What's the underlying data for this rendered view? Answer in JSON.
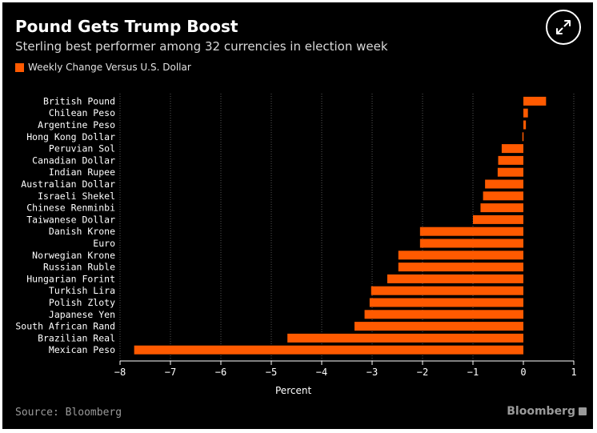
{
  "header": {
    "title": "Pound Gets Trump Boost",
    "subtitle": "Sterling best performer among 32 currencies in election week"
  },
  "footer": {
    "source": "Source: Bloomberg",
    "brand": "Bloomberg"
  },
  "colors": {
    "background": "#000000",
    "bar": "#ff5a00",
    "gridline": "#555555",
    "text": "#ffffff"
  },
  "icons": {
    "expand": "expand-arrows-icon"
  },
  "chart_data": {
    "type": "bar",
    "orientation": "horizontal",
    "title": "Pound Gets Trump Boost",
    "subtitle": "Sterling best performer among 32 currencies in election week",
    "legend": [
      "Weekly Change Versus U.S. Dollar"
    ],
    "legend_position": "top-left",
    "xlabel": "Percent",
    "ylabel": "",
    "xlim": [
      -8,
      1
    ],
    "xticks": [
      -8,
      -7,
      -6,
      -5,
      -4,
      -3,
      -2,
      -1,
      0,
      1
    ],
    "grid": true,
    "categories": [
      "British Pound",
      "Chilean Peso",
      "Argentine Peso",
      "Hong Kong Dollar",
      "Peruvian Sol",
      "Canadian Dollar",
      "Indian Rupee",
      "Australian Dollar",
      "Israeli Shekel",
      "Chinese Renminbi",
      "Taiwanese Dollar",
      "Danish Krone",
      "Euro",
      "Norwegian Krone",
      "Russian Ruble",
      "Hungarian Forint",
      "Turkish Lira",
      "Polish Zloty",
      "Japanese Yen",
      "South African Rand",
      "Brazilian Real",
      "Mexican Peso"
    ],
    "series": [
      {
        "name": "Weekly Change Versus U.S. Dollar",
        "values": [
          0.45,
          0.09,
          0.05,
          -0.02,
          -0.43,
          -0.5,
          -0.51,
          -0.76,
          -0.8,
          -0.85,
          -1.0,
          -2.05,
          -2.05,
          -2.48,
          -2.48,
          -2.7,
          -3.02,
          -3.05,
          -3.15,
          -3.35,
          -4.68,
          -7.72
        ]
      }
    ]
  }
}
